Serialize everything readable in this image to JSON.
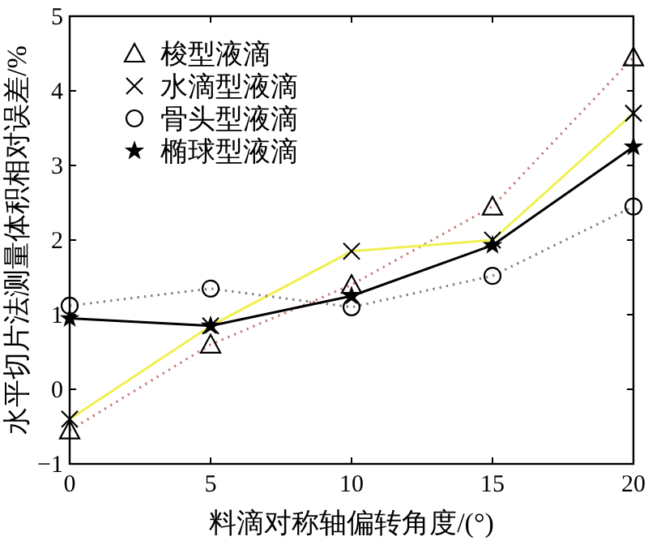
{
  "chart_data": {
    "type": "line",
    "xlabel": "料滴对称轴偏转角度/(°)",
    "ylabel": "水平切片法测量体积相对误差/%",
    "x": [
      0,
      5,
      10,
      15,
      20
    ],
    "xlim": [
      0,
      20
    ],
    "ylim": [
      -1,
      5
    ],
    "xticks": [
      0,
      5,
      10,
      15,
      20
    ],
    "yticks": [
      -1,
      0,
      1,
      2,
      3,
      4,
      5
    ],
    "grid": false,
    "legend": "top left",
    "series": [
      {
        "name": "梭型液滴",
        "color": "#c87878",
        "marker": "triangle",
        "line_style": "dotted",
        "values": [
          -0.55,
          0.6,
          1.4,
          2.45,
          4.45
        ]
      },
      {
        "name": "水滴型液滴",
        "color": "#f0f050",
        "marker": "cross",
        "line_style": "solid",
        "values": [
          -0.4,
          0.85,
          1.85,
          2.0,
          3.7
        ]
      },
      {
        "name": "骨头型液滴",
        "color": "#808080",
        "marker": "circle",
        "line_style": "dotted",
        "values": [
          1.12,
          1.35,
          1.1,
          1.52,
          2.45
        ]
      },
      {
        "name": "椭球型液滴",
        "color": "#000000",
        "marker": "star",
        "line_style": "solid",
        "values": [
          0.95,
          0.85,
          1.25,
          1.93,
          3.25
        ]
      }
    ]
  }
}
